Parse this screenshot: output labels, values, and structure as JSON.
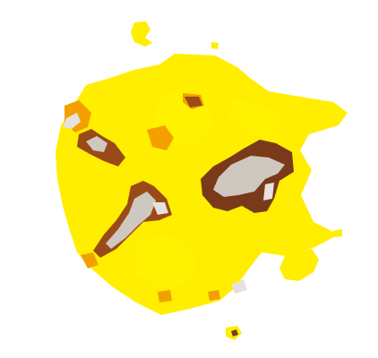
{
  "image": {
    "subject": "heat-map-blob",
    "background_color": "#ffffff",
    "colors": {
      "base_yellow": "#ffee00",
      "bright_yellow": "#fff200",
      "orange": "#f2a000",
      "dark_orange": "#d06a10",
      "brown": "#9a4a18",
      "dark_brown": "#7a3a1a",
      "grey": "#cfc8c0",
      "light_grey": "#e6e1dc"
    }
  }
}
